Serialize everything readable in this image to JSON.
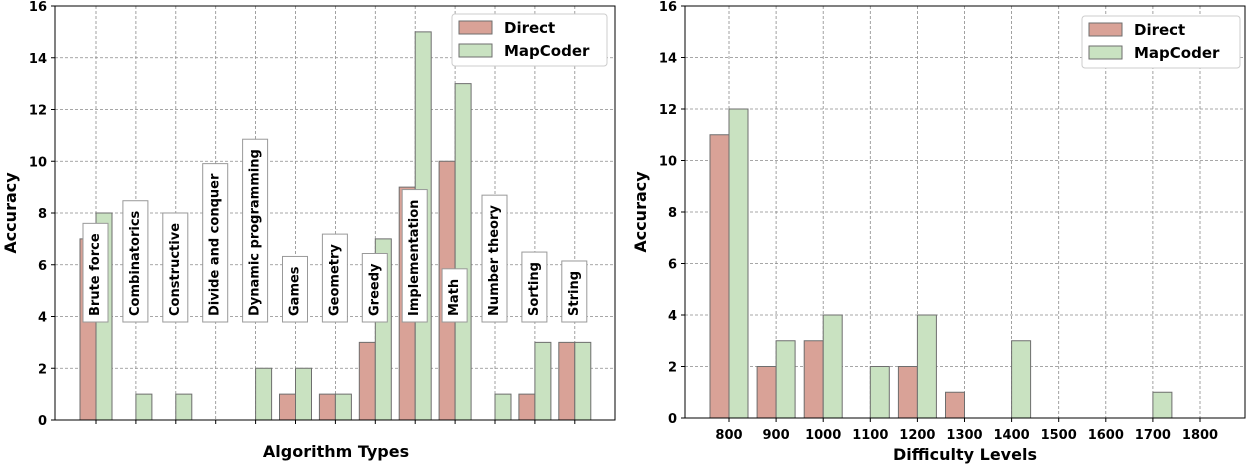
{
  "colors": {
    "direct": "#d9a297",
    "mapcoder": "#c9e2c1",
    "bar_edge": "#6e6e6e"
  },
  "chart_data": [
    {
      "type": "bar",
      "xlabel": "Algorithm Types",
      "ylabel": "Accuracy",
      "ylim": [
        0,
        16
      ],
      "yticks": [
        0,
        2,
        4,
        6,
        8,
        10,
        12,
        14,
        16
      ],
      "grid": true,
      "legend_position": "top-right",
      "categories": [
        "Brute force",
        "Combinatorics",
        "Constructive",
        "Divide and conquer",
        "Dynamic programming",
        "Games",
        "Geometry",
        "Greedy",
        "Implementation",
        "Math",
        "Number theory",
        "Sorting",
        "String"
      ],
      "series": [
        {
          "name": "Direct",
          "values": [
            7,
            0,
            0,
            0,
            0,
            1,
            1,
            3,
            9,
            10,
            0,
            1,
            3
          ]
        },
        {
          "name": "MapCoder",
          "values": [
            8,
            1,
            1,
            0,
            2,
            2,
            1,
            7,
            15,
            13,
            1,
            3,
            3
          ]
        }
      ]
    },
    {
      "type": "bar",
      "xlabel": "Difficulty Levels",
      "ylabel": "Accuracy",
      "ylim": [
        0,
        16
      ],
      "yticks": [
        0,
        2,
        4,
        6,
        8,
        10,
        12,
        14,
        16
      ],
      "grid": true,
      "legend_position": "top-right",
      "categories": [
        "800",
        "900",
        "1000",
        "1100",
        "1200",
        "1300",
        "1400",
        "1500",
        "1600",
        "1700",
        "1800"
      ],
      "series": [
        {
          "name": "Direct",
          "values": [
            11,
            2,
            3,
            0,
            2,
            1,
            0,
            0,
            0,
            0,
            0
          ]
        },
        {
          "name": "MapCoder",
          "values": [
            12,
            3,
            4,
            2,
            4,
            0,
            3,
            0,
            0,
            1,
            0
          ]
        }
      ]
    }
  ]
}
